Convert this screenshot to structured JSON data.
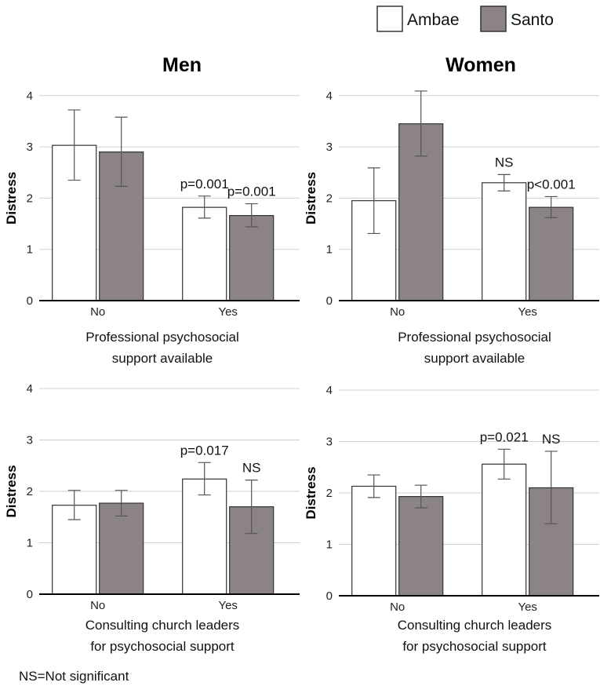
{
  "legend": {
    "items": [
      {
        "name": "Ambae",
        "color": "#ffffff"
      },
      {
        "name": "Santo",
        "color": "#8c8484"
      }
    ]
  },
  "colors": {
    "ambae": "#ffffff",
    "santo": "#8c8484",
    "grid": "#cfcfcf",
    "axis": "#000000"
  },
  "footnote": "NS=Not significant",
  "chart_data": [
    {
      "type": "bar",
      "column_title": "Men",
      "categories": [
        "No",
        "Yes"
      ],
      "xlabel": [
        "Professional psychosocial",
        "support available"
      ],
      "ylabel": "Distress",
      "ylim": [
        0,
        4
      ],
      "yticks": [
        0,
        1,
        2,
        3,
        4
      ],
      "series": [
        {
          "name": "Ambae",
          "values": [
            3.03,
            1.82
          ],
          "ci_low": [
            2.35,
            1.61
          ],
          "ci_high": [
            3.72,
            2.04
          ],
          "annotations": [
            "",
            "p=0.001"
          ]
        },
        {
          "name": "Santo",
          "values": [
            2.9,
            1.66
          ],
          "ci_low": [
            2.23,
            1.44
          ],
          "ci_high": [
            3.58,
            1.89
          ],
          "annotations": [
            "",
            "p=0.001"
          ]
        }
      ]
    },
    {
      "type": "bar",
      "column_title": "Women",
      "categories": [
        "No",
        "Yes"
      ],
      "xlabel": [
        "Professional psychosocial",
        "support available"
      ],
      "ylabel": "Distress",
      "ylim": [
        0,
        4
      ],
      "yticks": [
        0,
        1,
        2,
        3,
        4
      ],
      "series": [
        {
          "name": "Ambae",
          "values": [
            1.95,
            2.3
          ],
          "ci_low": [
            1.31,
            2.14
          ],
          "ci_high": [
            2.59,
            2.46
          ],
          "annotations": [
            "",
            "NS"
          ]
        },
        {
          "name": "Santo",
          "values": [
            3.45,
            1.82
          ],
          "ci_low": [
            2.82,
            1.62
          ],
          "ci_high": [
            4.09,
            2.03
          ],
          "annotations": [
            "",
            "p<0.001"
          ]
        }
      ]
    },
    {
      "type": "bar",
      "categories": [
        "No",
        "Yes"
      ],
      "xlabel": [
        "Consulting church leaders",
        "for psychosocial support"
      ],
      "ylabel": "Distress",
      "ylim": [
        0,
        4
      ],
      "yticks": [
        0,
        1,
        2,
        3,
        4
      ],
      "series": [
        {
          "name": "Ambae",
          "values": [
            1.73,
            2.24
          ],
          "ci_low": [
            1.45,
            1.93
          ],
          "ci_high": [
            2.02,
            2.56
          ],
          "annotations": [
            "",
            "p=0.017"
          ]
        },
        {
          "name": "Santo",
          "values": [
            1.77,
            1.7
          ],
          "ci_low": [
            1.52,
            1.18
          ],
          "ci_high": [
            2.02,
            2.22
          ],
          "annotations": [
            "",
            "NS"
          ]
        }
      ]
    },
    {
      "type": "bar",
      "categories": [
        "No",
        "Yes"
      ],
      "xlabel": [
        "Consulting church leaders",
        "for psychosocial support"
      ],
      "ylabel": "Distress",
      "ylim": [
        0,
        4
      ],
      "yticks": [
        0,
        1,
        2,
        3,
        4
      ],
      "series": [
        {
          "name": "Ambae",
          "values": [
            2.13,
            2.56
          ],
          "ci_low": [
            1.91,
            2.27
          ],
          "ci_high": [
            2.35,
            2.85
          ],
          "annotations": [
            "",
            "p=0.021"
          ]
        },
        {
          "name": "Santo",
          "values": [
            1.93,
            2.1
          ],
          "ci_low": [
            1.71,
            1.4
          ],
          "ci_high": [
            2.15,
            2.81
          ],
          "annotations": [
            "",
            "NS"
          ]
        }
      ]
    }
  ]
}
